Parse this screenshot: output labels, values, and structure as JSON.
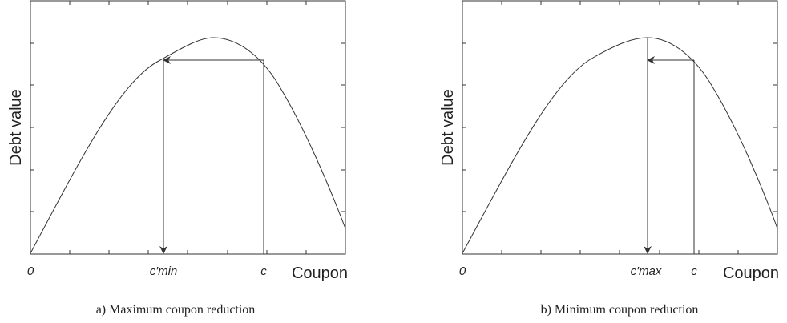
{
  "panels": [
    {
      "y_axis_label": "Debt value",
      "x_axis_label": "Coupon",
      "origin_label": "0",
      "reduced_coupon_label": "c'min",
      "coupon_label": "c",
      "caption": "a) Maximum coupon reduction"
    },
    {
      "y_axis_label": "Debt value",
      "x_axis_label": "Coupon",
      "origin_label": "0",
      "reduced_coupon_label": "c'max",
      "coupon_label": "c",
      "caption": "b) Minimum coupon reduction"
    }
  ]
}
